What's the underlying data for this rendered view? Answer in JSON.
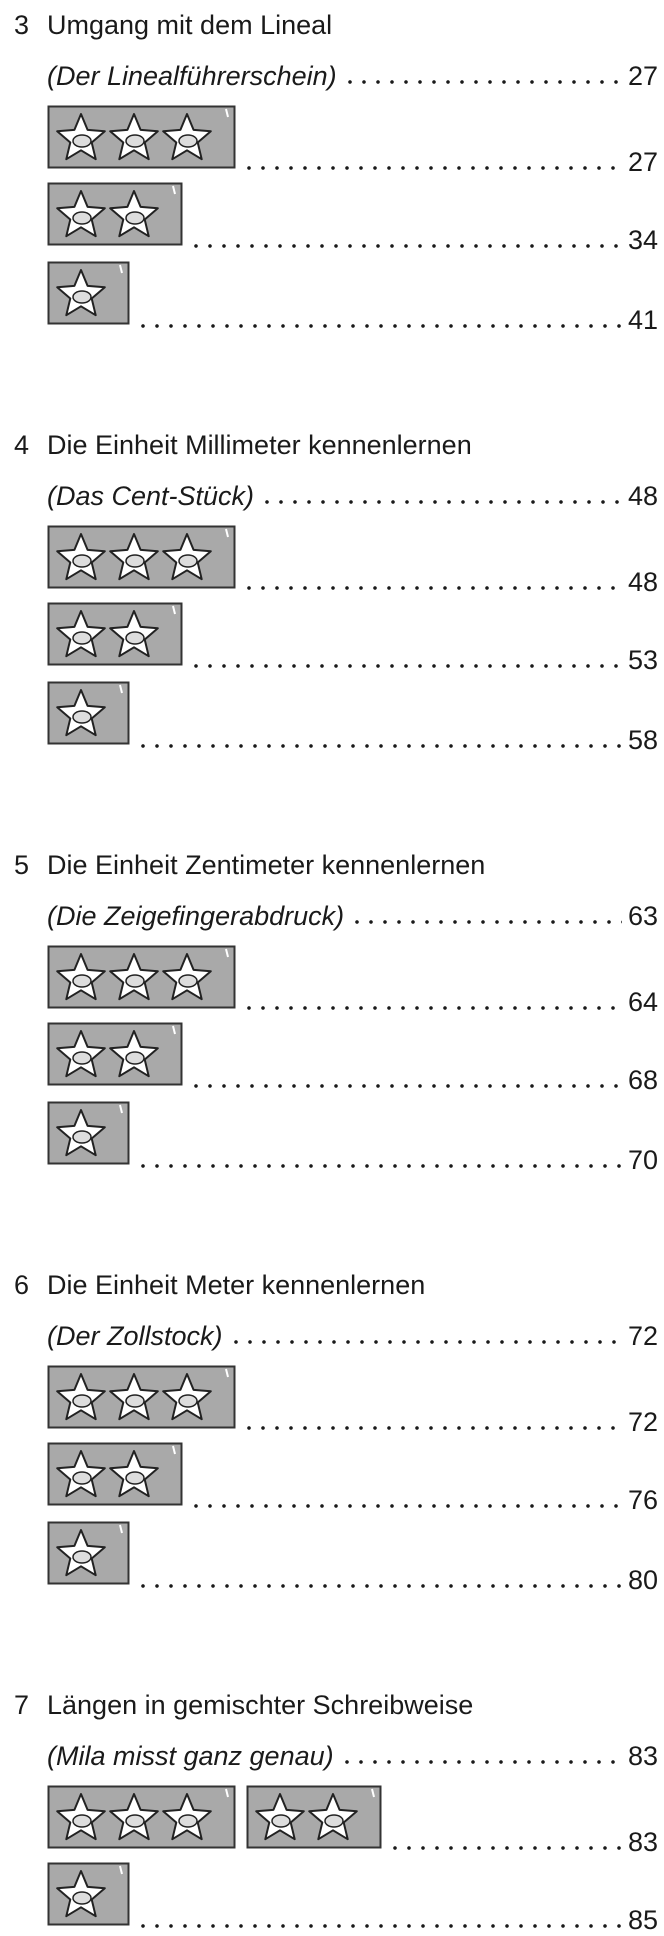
{
  "sections": [
    {
      "number": "3",
      "title": "Umgang mit dem Lineal",
      "subtitle": "(Der Linealführerschein)",
      "subtitle_page": "27",
      "levels": [
        {
          "boxes": [
            3
          ],
          "page": "27"
        },
        {
          "boxes": [
            2
          ],
          "page": "34"
        },
        {
          "boxes": [
            1
          ],
          "page": "41"
        }
      ]
    },
    {
      "number": "4",
      "title": "Die Einheit Millimeter kennenlernen",
      "subtitle": "(Das Cent-Stück)",
      "subtitle_page": "48",
      "levels": [
        {
          "boxes": [
            3
          ],
          "page": "48"
        },
        {
          "boxes": [
            2
          ],
          "page": "53"
        },
        {
          "boxes": [
            1
          ],
          "page": "58"
        }
      ]
    },
    {
      "number": "5",
      "title": "Die Einheit Zentimeter kennenlernen",
      "subtitle": "(Die Zeigefingerabdruck)",
      "subtitle_page": "63",
      "levels": [
        {
          "boxes": [
            3
          ],
          "page": "64"
        },
        {
          "boxes": [
            2
          ],
          "page": "68"
        },
        {
          "boxes": [
            1
          ],
          "page": "70"
        }
      ]
    },
    {
      "number": "6",
      "title": "Die Einheit Meter kennenlernen",
      "subtitle": "(Der Zollstock)",
      "subtitle_page": "72",
      "levels": [
        {
          "boxes": [
            3
          ],
          "page": "72"
        },
        {
          "boxes": [
            2
          ],
          "page": "76"
        },
        {
          "boxes": [
            1
          ],
          "page": "80"
        }
      ]
    },
    {
      "number": "7",
      "title": "Längen in gemischter Schreibweise",
      "subtitle": "(Mila misst ganz genau)",
      "subtitle_page": "83",
      "levels": [
        {
          "boxes": [
            3,
            2
          ],
          "page": "83"
        },
        {
          "boxes": [
            1
          ],
          "page": "85"
        }
      ]
    }
  ]
}
